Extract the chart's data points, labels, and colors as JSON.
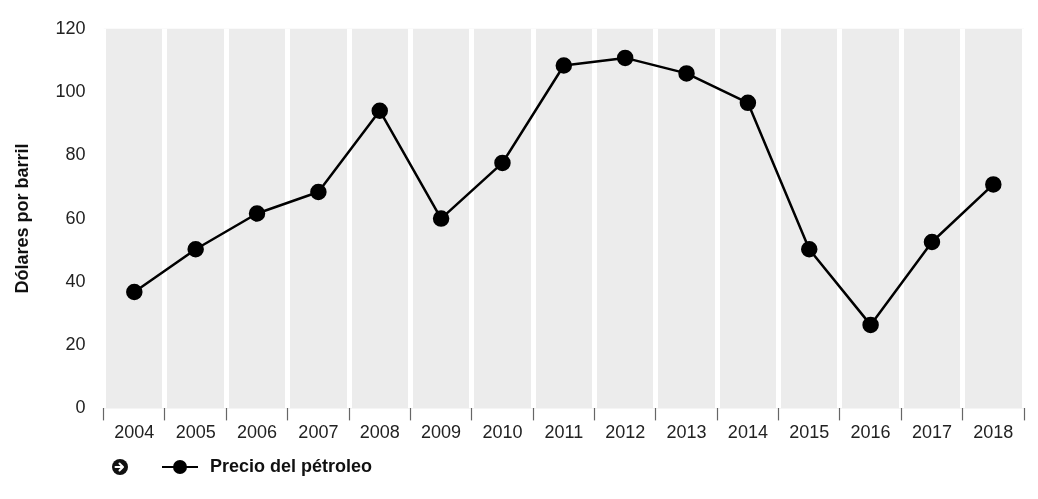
{
  "chart_data": {
    "type": "line",
    "categories": [
      "2004",
      "2005",
      "2006",
      "2007",
      "2008",
      "2009",
      "2010",
      "2011",
      "2012",
      "2013",
      "2014",
      "2015",
      "2016",
      "2017",
      "2018"
    ],
    "series": [
      {
        "name": "Precio del pétroleo",
        "color": "#000000",
        "values": [
          36.8,
          50.3,
          61.6,
          68.4,
          94.1,
          60.0,
          77.6,
          108.4,
          110.8,
          105.9,
          96.6,
          50.3,
          26.4,
          52.6,
          70.8
        ]
      }
    ],
    "ylabel": "Dólares por barril",
    "ylim": [
      0,
      120
    ],
    "yticks": [
      0,
      20,
      40,
      60,
      80,
      100,
      120
    ],
    "grid": "x",
    "marker": "circle",
    "line_style": "solid",
    "legend": "bottom left"
  }
}
